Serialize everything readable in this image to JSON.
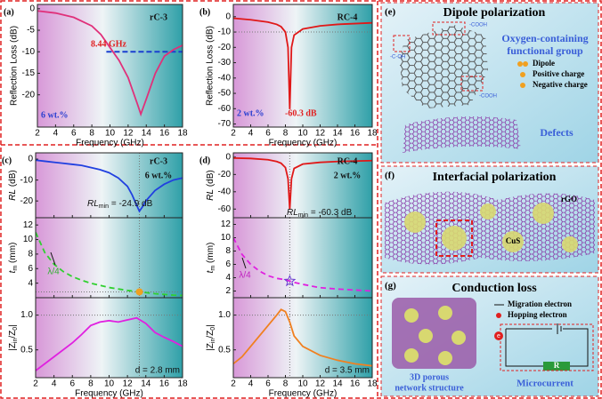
{
  "chart_data": [
    {
      "type": "line",
      "panel": "(a)",
      "xlabel": "Frequency (GHz)",
      "ylabel": "Reflection Loss (dB)",
      "xlim": [
        2,
        18
      ],
      "xticks": [
        2,
        4,
        6,
        8,
        10,
        12,
        14,
        16,
        18
      ],
      "ylim": [
        -27.5,
        1
      ],
      "yticks": [
        0,
        -5,
        -10,
        -15,
        -20
      ],
      "series": [
        {
          "color": "#e0307a",
          "x": [
            2,
            4,
            6,
            8,
            9,
            10,
            11,
            12,
            13,
            13.4,
            14,
            15,
            16,
            17,
            18
          ],
          "values": [
            -0.5,
            -1,
            -2,
            -4,
            -6,
            -9,
            -12,
            -16,
            -22,
            -24.5,
            -21,
            -15,
            -11,
            -9.5,
            -8.5
          ]
        }
      ],
      "threshold": {
        "y": -10,
        "x": [
          9.6,
          18
        ],
        "color": "#1a3fd0"
      },
      "annotations": [
        {
          "text": "rC-3",
          "color": "#111"
        },
        {
          "text": "8.44 GHz",
          "color": "#e02020"
        },
        {
          "text": "6 wt.%",
          "color": "#2a3fd0"
        }
      ]
    },
    {
      "type": "line",
      "panel": "(b)",
      "xlabel": "Frequency (GHz)",
      "ylabel": "Reflection Loss (dB)",
      "xlim": [
        2,
        18
      ],
      "xticks": [
        2,
        4,
        6,
        8,
        10,
        12,
        14,
        16,
        18
      ],
      "ylim": [
        -72,
        8
      ],
      "yticks": [
        0,
        -10,
        -20,
        -30,
        -40,
        -50,
        -60,
        -70
      ],
      "series": [
        {
          "color": "#e01818",
          "x": [
            2,
            4,
            6,
            7,
            7.5,
            8,
            8.3,
            8.5,
            8.7,
            9,
            10,
            12,
            14,
            16,
            18
          ],
          "values": [
            -1,
            -2,
            -3.5,
            -5,
            -6.5,
            -10,
            -20,
            -60.3,
            -20,
            -12,
            -8,
            -6,
            -5,
            -4.5,
            -4
          ]
        }
      ],
      "hlines": [
        -10
      ],
      "annotations": [
        {
          "text": "RC-4",
          "color": "#111"
        },
        {
          "text": "-60.3 dB",
          "color": "#e02020"
        },
        {
          "text": "2 wt.%",
          "color": "#2a3fd0"
        }
      ]
    },
    {
      "type": "line",
      "panel": "(c)",
      "ylabel": [
        {
          "t": "RL",
          "i": true
        },
        {
          "t": " (dB)"
        }
      ],
      "xlim": [
        2,
        18
      ],
      "xticks": [
        2,
        4,
        6,
        8,
        10,
        12,
        14,
        16,
        18
      ],
      "ylim": [
        -28,
        3
      ],
      "yticks": [
        0,
        -10,
        -20
      ],
      "series": [
        {
          "color": "#2040e0",
          "x": [
            2,
            3,
            4,
            5,
            6,
            7,
            8,
            9,
            10,
            11,
            12,
            12.5,
            13,
            13.3,
            13.6,
            14,
            15,
            16,
            17,
            18
          ],
          "values": [
            -0.5,
            -1,
            -1.5,
            -2,
            -2.5,
            -3,
            -4,
            -5,
            -6.5,
            -9,
            -13,
            -17,
            -22,
            -24.9,
            -23,
            -20,
            -15,
            -12,
            -10,
            -9
          ]
        }
      ],
      "vlines": [
        13.3
      ],
      "annotations": [
        {
          "text": "rC-3",
          "color": "#111"
        },
        {
          "text": "6 wt.%",
          "color": "#111"
        },
        {
          "parts": [
            {
              "t": "RL",
              "i": true
            },
            {
              "t": "min",
              "sub": true
            },
            {
              "t": " = -24.9 dB"
            }
          ],
          "color": "#111"
        }
      ]
    },
    {
      "type": "line",
      "ylabel": [
        {
          "t": "t",
          "i": true
        },
        {
          "t": "m",
          "sub": true
        },
        {
          "t": " (mm)"
        }
      ],
      "xlim": [
        2,
        18
      ],
      "xticks": [
        2,
        4,
        6,
        8,
        10,
        12,
        14,
        16,
        18
      ],
      "ylim": [
        2,
        13
      ],
      "yticks": [
        4,
        6,
        8,
        10,
        12
      ],
      "series": [
        {
          "color": "#30d030",
          "dashed": true,
          "x": [
            2,
            3,
            4,
            5,
            6,
            7,
            8,
            9,
            10,
            11,
            12,
            13,
            14,
            15,
            16,
            17,
            18
          ],
          "values": [
            11,
            8.2,
            6.6,
            5.6,
            4.9,
            4.4,
            4,
            3.7,
            3.4,
            3.2,
            3,
            2.85,
            2.7,
            2.55,
            2.45,
            2.35,
            2.3
          ]
        }
      ],
      "markers": [
        {
          "x": 13.3,
          "y": 2.8,
          "shape": "circle",
          "color": "#f0a020"
        }
      ],
      "hlines": [
        2.8
      ],
      "vlines": [
        13.3
      ],
      "annotations": [
        {
          "text": "λ/4",
          "color": "#30b030"
        }
      ]
    },
    {
      "type": "line",
      "xlabel": "Frequency (GHz)",
      "ylabel": [
        {
          "t": "|Z"
        },
        {
          "t": "in",
          "sub": true
        },
        {
          "t": "/Z"
        },
        {
          "t": "0",
          "sub": true
        },
        {
          "t": "|"
        }
      ],
      "xlim": [
        2,
        18
      ],
      "xticks": [
        2,
        4,
        6,
        8,
        10,
        12,
        14,
        16,
        18
      ],
      "ylim": [
        0.1,
        1.25
      ],
      "yticks": [
        0.5,
        {
          "value": 1,
          "label": "1.0"
        }
      ],
      "series": [
        {
          "color": "#e020e0",
          "x": [
            2,
            4,
            6,
            7,
            8,
            9,
            10,
            11,
            12,
            13,
            14,
            15,
            16,
            17,
            18
          ],
          "values": [
            0.2,
            0.4,
            0.6,
            0.72,
            0.85,
            0.9,
            0.92,
            0.9,
            0.93,
            0.96,
            0.88,
            0.75,
            0.68,
            0.62,
            0.55
          ]
        }
      ],
      "hlines": [
        1
      ],
      "vlines": [
        13.3
      ],
      "annotations": [
        {
          "text": "d = 2.8 mm",
          "color": "#111"
        }
      ]
    },
    {
      "type": "line",
      "panel": "(d)",
      "ylabel": [
        {
          "t": "RL",
          "i": true
        },
        {
          "t": " (dB)"
        }
      ],
      "xlim": [
        2,
        18
      ],
      "xticks": [
        2,
        4,
        6,
        8,
        10,
        12,
        14,
        16,
        18
      ],
      "ylim": [
        -70,
        5
      ],
      "yticks": [
        0,
        -20,
        -40,
        -60
      ],
      "series": [
        {
          "color": "#e01818",
          "x": [
            2,
            4,
            6,
            7,
            7.5,
            8,
            8.3,
            8.5,
            8.7,
            9,
            10,
            12,
            14,
            16,
            18
          ],
          "values": [
            -1,
            -1.5,
            -3,
            -5,
            -7,
            -12,
            -25,
            -60.3,
            -25,
            -13,
            -8,
            -6,
            -5,
            -4.5,
            -4
          ]
        }
      ],
      "vlines": [
        8.5
      ],
      "annotations": [
        {
          "text": "RC-4",
          "color": "#111"
        },
        {
          "text": "2 wt.%",
          "color": "#111"
        },
        {
          "parts": [
            {
              "t": "RL",
              "i": true
            },
            {
              "t": "min",
              "sub": true
            },
            {
              "t": " = -60.3 dB"
            }
          ],
          "color": "#111"
        }
      ]
    },
    {
      "type": "line",
      "ylabel": [
        {
          "t": "t",
          "i": true
        },
        {
          "t": "m",
          "sub": true
        },
        {
          "t": " (mm)"
        }
      ],
      "xlim": [
        2,
        18
      ],
      "xticks": [
        2,
        4,
        6,
        8,
        10,
        12,
        14,
        16,
        18
      ],
      "ylim": [
        1,
        13
      ],
      "yticks": [
        2,
        4,
        6,
        8,
        10,
        12
      ],
      "series": [
        {
          "color": "#e020e0",
          "dashed": true,
          "x": [
            2,
            3,
            4,
            5,
            6,
            7,
            8,
            8.5,
            9,
            10,
            12,
            14,
            16,
            18
          ],
          "values": [
            10,
            7.5,
            6,
            5,
            4.3,
            3.9,
            3.7,
            3.5,
            3.3,
            3,
            2.5,
            2.3,
            2.15,
            2
          ]
        }
      ],
      "markers": [
        {
          "x": 8.5,
          "y": 3.5,
          "shape": "star",
          "color": "#6a3ad0"
        }
      ],
      "vlines": [
        8.5
      ],
      "annotations": [
        {
          "text": "λ/4",
          "color": "#c020c0"
        }
      ]
    },
    {
      "type": "line",
      "xlabel": "Frequency (GHz)",
      "ylabel": [
        {
          "t": "|Z"
        },
        {
          "t": "in",
          "sub": true
        },
        {
          "t": "/Z"
        },
        {
          "t": "0",
          "sub": true
        },
        {
          "t": "|"
        }
      ],
      "xlim": [
        2,
        18
      ],
      "xticks": [
        2,
        4,
        6,
        8,
        10,
        12,
        14,
        16,
        18
      ],
      "ylim": [
        0.1,
        1.25
      ],
      "yticks": [
        0.5,
        {
          "value": 1,
          "label": "1.0"
        }
      ],
      "series": [
        {
          "color": "#f08020",
          "x": [
            2,
            3,
            4,
            5,
            6,
            7,
            7.5,
            8,
            8.5,
            9,
            10,
            12,
            14,
            16,
            18
          ],
          "values": [
            0.3,
            0.4,
            0.55,
            0.7,
            0.85,
            1,
            1.08,
            1.05,
            0.9,
            0.7,
            0.55,
            0.42,
            0.35,
            0.3,
            0.27
          ]
        }
      ],
      "hlines": [
        1
      ],
      "vlines": [
        8.5
      ],
      "annotations": [
        {
          "text": "d = 3.5 mm",
          "color": "#111"
        }
      ]
    }
  ],
  "diagrams": {
    "e": {
      "panel": "(e)",
      "title": "Dipole polarization",
      "group": [
        "Oxygen-containing",
        "functional group"
      ],
      "legend": [
        "Dipole",
        "Positive charge",
        "Negative charge"
      ],
      "groups": [
        "-COOH",
        "-C-OH",
        "-COOH"
      ],
      "defects": "Defects"
    },
    "f": {
      "panel": "(f)",
      "title": "Interfacial polarization",
      "rgo": "rGO",
      "cus": "CuS"
    },
    "g": {
      "panel": "(g)",
      "title": "Conduction loss",
      "legend": [
        "Migration electron",
        "Hopping electron"
      ],
      "resistor": "R",
      "electron": "e",
      "structure": [
        "3D porous",
        "network structure"
      ],
      "current": "Microcurrent"
    }
  }
}
